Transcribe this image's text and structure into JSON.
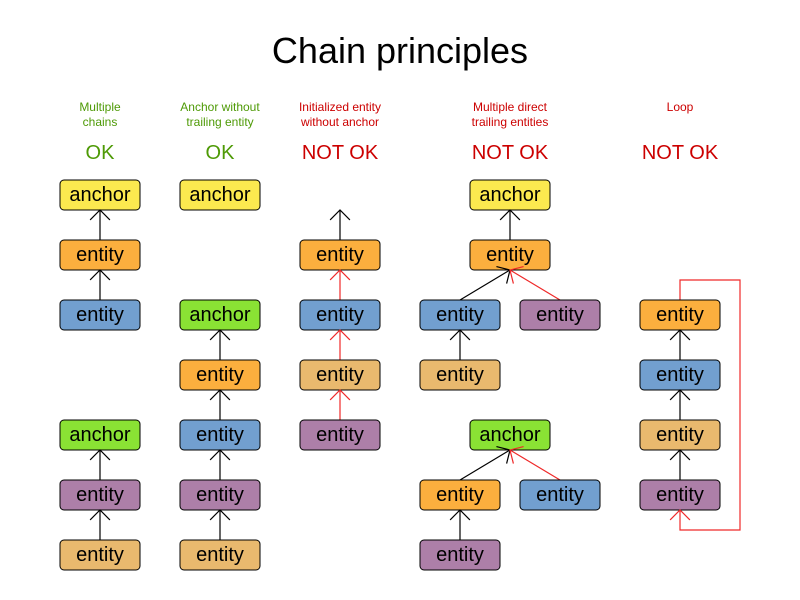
{
  "title": "Chain principles",
  "palette": {
    "yellow": "#fce94f",
    "orange": "#fcaf3e",
    "blue": "#729fcf",
    "tan": "#e9b96e",
    "purple": "#ad7fa8",
    "green": "#8ae234",
    "ok_text": "#4e9a06",
    "notok_text": "#cc0000",
    "edge_ok": "#000000",
    "edge_bad": "#ef2929"
  },
  "diagrams": [
    {
      "caption": [
        "Multiple",
        "chains"
      ],
      "verdict": "OK",
      "valid": true,
      "nodes": [
        {
          "label": "anchor",
          "color": "yellow"
        },
        {
          "label": "entity",
          "color": "orange"
        },
        {
          "label": "entity",
          "color": "blue"
        },
        {
          "label": "anchor",
          "color": "green"
        },
        {
          "label": "entity",
          "color": "purple"
        },
        {
          "label": "entity",
          "color": "tan"
        }
      ],
      "edges": [
        [
          1,
          0,
          "ok"
        ],
        [
          2,
          1,
          "ok"
        ],
        [
          4,
          3,
          "ok"
        ],
        [
          5,
          4,
          "ok"
        ]
      ]
    },
    {
      "caption": [
        "Anchor without",
        "trailing entity"
      ],
      "verdict": "OK",
      "valid": true,
      "nodes": [
        {
          "label": "anchor",
          "color": "yellow"
        },
        {
          "label": "anchor",
          "color": "green"
        },
        {
          "label": "entity",
          "color": "orange"
        },
        {
          "label": "entity",
          "color": "blue"
        },
        {
          "label": "entity",
          "color": "purple"
        },
        {
          "label": "entity",
          "color": "tan"
        }
      ],
      "edges": [
        [
          2,
          1,
          "ok"
        ],
        [
          3,
          2,
          "ok"
        ],
        [
          4,
          3,
          "ok"
        ],
        [
          5,
          4,
          "ok"
        ]
      ]
    },
    {
      "caption": [
        "Initialized entity",
        "without anchor"
      ],
      "verdict": "NOT OK",
      "valid": false,
      "nodes": [
        {
          "label": "entity",
          "color": "orange"
        },
        {
          "label": "entity",
          "color": "blue"
        },
        {
          "label": "entity",
          "color": "tan"
        },
        {
          "label": "entity",
          "color": "purple"
        }
      ],
      "edges": [
        [
          0,
          null,
          "ok"
        ],
        [
          1,
          0,
          "bad"
        ],
        [
          2,
          1,
          "bad"
        ],
        [
          3,
          2,
          "bad"
        ]
      ]
    },
    {
      "caption": [
        "Multiple direct",
        "trailing entities"
      ],
      "verdict": "NOT OK",
      "valid": false,
      "nodes": [
        {
          "label": "anchor",
          "color": "yellow"
        },
        {
          "label": "entity",
          "color": "orange"
        },
        {
          "label": "entity",
          "color": "blue"
        },
        {
          "label": "entity",
          "color": "purple"
        },
        {
          "label": "entity",
          "color": "tan"
        },
        {
          "label": "anchor",
          "color": "green"
        },
        {
          "label": "entity",
          "color": "orange"
        },
        {
          "label": "entity",
          "color": "blue"
        },
        {
          "label": "entity",
          "color": "purple"
        }
      ],
      "edges": [
        [
          1,
          0,
          "ok"
        ],
        [
          2,
          1,
          "ok"
        ],
        [
          3,
          1,
          "bad"
        ],
        [
          4,
          2,
          "ok"
        ],
        [
          6,
          5,
          "ok"
        ],
        [
          7,
          5,
          "bad"
        ],
        [
          8,
          6,
          "ok"
        ]
      ]
    },
    {
      "caption": [
        "Loop"
      ],
      "verdict": "NOT OK",
      "valid": false,
      "nodes": [
        {
          "label": "entity",
          "color": "orange"
        },
        {
          "label": "entity",
          "color": "blue"
        },
        {
          "label": "entity",
          "color": "tan"
        },
        {
          "label": "entity",
          "color": "purple"
        }
      ],
      "edges": [
        [
          1,
          0,
          "ok"
        ],
        [
          2,
          1,
          "ok"
        ],
        [
          3,
          2,
          "ok"
        ],
        [
          0,
          3,
          "loop"
        ]
      ]
    }
  ]
}
